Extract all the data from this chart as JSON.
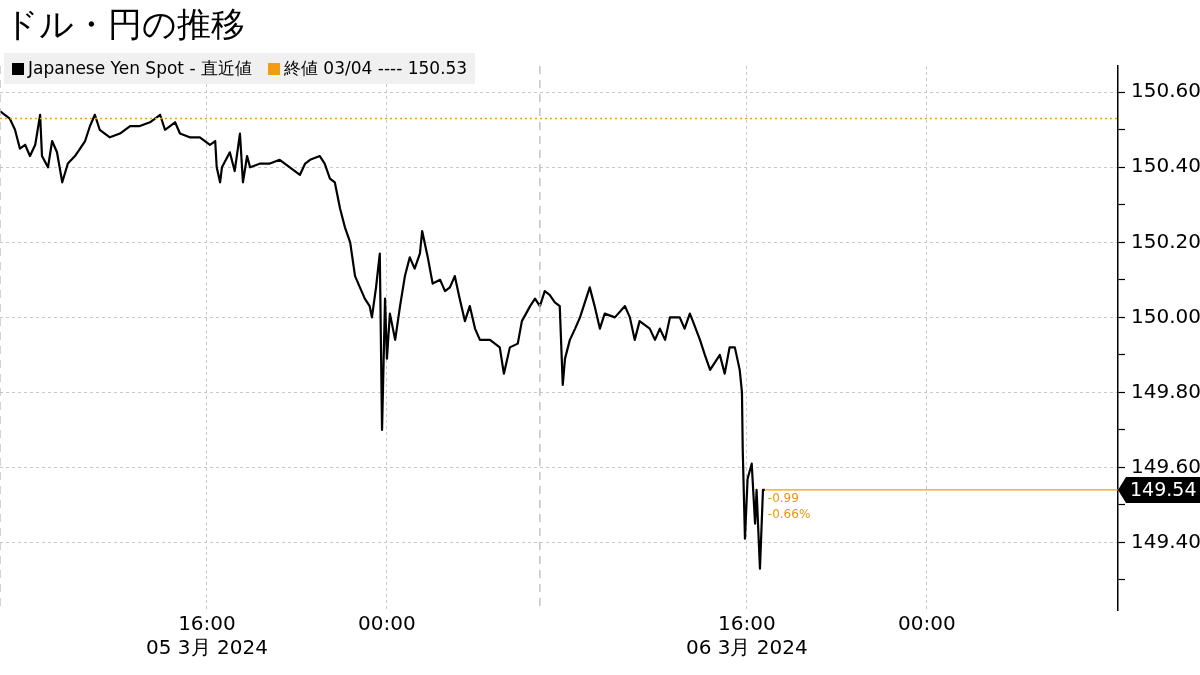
{
  "chart_data": {
    "type": "line",
    "title": "ドル・円の推移",
    "x": [
      "2024-03-05T06:48",
      "2024-03-05T07:14",
      "2024-03-05T07:28",
      "2024-03-05T07:41",
      "2024-03-05T07:55",
      "2024-03-05T08:08",
      "2024-03-05T08:22",
      "2024-03-05T08:35",
      "2024-03-05T08:40",
      "2024-03-05T08:56",
      "2024-03-05T09:07",
      "2024-03-05T09:20",
      "2024-03-05T09:34",
      "2024-03-05T09:49",
      "2024-03-05T10:08",
      "2024-03-05T10:35",
      "2024-03-05T10:48",
      "2024-03-05T11:01",
      "2024-03-05T11:14",
      "2024-03-05T11:41",
      "2024-03-05T12:08",
      "2024-03-05T12:35",
      "2024-03-05T13:01",
      "2024-03-05T13:28",
      "2024-03-05T13:55",
      "2024-03-05T14:08",
      "2024-03-05T14:35",
      "2024-03-05T14:48",
      "2024-03-05T15:14",
      "2024-03-05T15:41",
      "2024-03-05T16:08",
      "2024-03-05T16:22",
      "2024-03-05T16:26",
      "2024-03-05T16:35",
      "2024-03-05T16:40",
      "2024-03-05T17:01",
      "2024-03-05T17:14",
      "2024-03-05T17:28",
      "2024-03-05T17:36",
      "2024-03-05T17:47",
      "2024-03-05T17:55",
      "2024-03-05T18:22",
      "2024-03-05T18:48",
      "2024-03-05T19:14",
      "2024-03-05T19:41",
      "2024-03-05T20:08",
      "2024-03-05T20:22",
      "2024-03-05T20:35",
      "2024-03-05T21:01",
      "2024-03-05T21:14",
      "2024-03-05T21:28",
      "2024-03-05T21:41",
      "2024-03-05T21:55",
      "2024-03-05T22:08",
      "2024-03-05T22:22",
      "2024-03-05T22:35",
      "2024-03-05T22:48",
      "2024-03-05T23:01",
      "2024-03-05T23:14",
      "2024-03-05T23:20",
      "2024-03-05T23:31",
      "2024-03-05T23:41",
      "2024-03-05T23:47",
      "2024-03-05T23:55",
      "2024-03-06T00:00",
      "2024-03-06T00:08",
      "2024-03-06T00:22",
      "2024-03-06T00:35",
      "2024-03-06T00:48",
      "2024-03-06T01:01",
      "2024-03-06T01:14",
      "2024-03-06T01:28",
      "2024-03-06T01:34",
      "2024-03-06T01:49",
      "2024-03-06T02:02",
      "2024-03-06T02:22",
      "2024-03-06T02:35",
      "2024-03-06T02:48",
      "2024-03-06T03:01",
      "2024-03-06T03:14",
      "2024-03-06T03:28",
      "2024-03-06T03:41",
      "2024-03-06T03:55",
      "2024-03-06T04:08",
      "2024-03-06T04:35",
      "2024-03-06T05:01",
      "2024-03-06T05:12",
      "2024-03-06T05:28",
      "2024-03-06T05:49",
      "2024-03-06T06:00",
      "2024-03-06T06:22",
      "2024-03-06T06:35",
      "2024-03-06T06:48",
      "2024-03-06T07:01",
      "2024-03-06T07:14",
      "2024-03-06T07:28",
      "2024-03-06T07:41",
      "2024-03-06T07:49",
      "2024-03-06T07:55",
      "2024-03-06T08:08",
      "2024-03-06T08:22",
      "2024-03-06T08:35",
      "2024-03-06T08:48",
      "2024-03-06T09:01",
      "2024-03-06T09:14",
      "2024-03-06T09:28",
      "2024-03-06T09:41",
      "2024-03-06T10:08",
      "2024-03-06T10:35",
      "2024-03-06T10:48",
      "2024-03-06T11:01",
      "2024-03-06T11:14",
      "2024-03-06T11:41",
      "2024-03-06T11:55",
      "2024-03-06T12:08",
      "2024-03-06T12:22",
      "2024-03-06T12:35",
      "2024-03-06T13:01",
      "2024-03-06T13:14",
      "2024-03-06T13:28",
      "2024-03-06T13:36",
      "2024-03-06T13:55",
      "2024-03-06T14:08",
      "2024-03-06T14:22",
      "2024-03-06T14:35",
      "2024-03-06T14:48",
      "2024-03-06T15:01",
      "2024-03-06T15:14",
      "2024-03-06T15:28",
      "2024-03-06T15:41",
      "2024-03-06T15:47",
      "2024-03-06T15:49",
      "2024-03-06T15:55",
      "2024-03-06T16:02",
      "2024-03-06T16:13",
      "2024-03-06T16:22",
      "2024-03-06T16:26",
      "2024-03-06T16:35",
      "2024-03-06T16:43",
      "2024-03-06T16:48"
    ],
    "series": [
      {
        "name": "Japanese Yen Spot - 直近値",
        "color": "#000000",
        "values": [
          150.55,
          150.53,
          150.5,
          150.45,
          150.46,
          150.43,
          150.46,
          150.54,
          150.43,
          150.4,
          150.47,
          150.44,
          150.36,
          150.41,
          150.43,
          150.47,
          150.51,
          150.54,
          150.5,
          150.48,
          150.49,
          150.51,
          150.51,
          150.52,
          150.54,
          150.5,
          150.52,
          150.49,
          150.48,
          150.48,
          150.46,
          150.47,
          150.4,
          150.36,
          150.4,
          150.44,
          150.39,
          150.49,
          150.36,
          150.43,
          150.4,
          150.41,
          150.41,
          150.42,
          150.4,
          150.38,
          150.41,
          150.42,
          150.43,
          150.41,
          150.37,
          150.36,
          150.29,
          150.24,
          150.2,
          150.11,
          150.08,
          150.05,
          150.03,
          150.0,
          150.08,
          150.17,
          149.7,
          150.05,
          149.89,
          150.01,
          149.94,
          150.03,
          150.11,
          150.16,
          150.13,
          150.17,
          150.23,
          150.16,
          150.09,
          150.1,
          150.07,
          150.08,
          150.11,
          150.05,
          149.99,
          150.03,
          149.97,
          149.94,
          149.94,
          149.92,
          149.85,
          149.92,
          149.93,
          149.99,
          150.03,
          150.05,
          150.03,
          150.07,
          150.06,
          150.04,
          150.03,
          149.82,
          149.89,
          149.94,
          149.97,
          150.0,
          150.04,
          150.08,
          150.03,
          149.97,
          150.01,
          150.0,
          150.03,
          150.0,
          149.94,
          149.99,
          149.97,
          149.94,
          149.97,
          149.94,
          150.0,
          150.0,
          149.97,
          150.01,
          149.99,
          149.94,
          149.9,
          149.86,
          149.88,
          149.9,
          149.85,
          149.92,
          149.92,
          149.86,
          149.8,
          149.65,
          149.41,
          149.57,
          149.61,
          149.45,
          149.54,
          149.33,
          149.54,
          149.54
        ]
      }
    ],
    "xlim": [
      "2024-03-05T06:48",
      "2024-03-07T08:30"
    ],
    "xticks": [
      {
        "value": "2024-03-05T16:00",
        "label": "16:00\n05 3月 2024"
      },
      {
        "value": "2024-03-06T00:00",
        "label": "00:00"
      },
      {
        "value": "2024-03-06T16:00",
        "label": "16:00\n06 3月 2024"
      },
      {
        "value": "2024-03-07T00:00",
        "label": "00:00"
      }
    ],
    "ylim": [
      149.22,
      150.67
    ],
    "yticks": [
      {
        "value": 149.3,
        "label": null
      },
      {
        "value": 149.4,
        "label": "149.40"
      },
      {
        "value": 149.5,
        "label": null
      },
      {
        "value": 149.6,
        "label": "149.60"
      },
      {
        "value": 149.7,
        "label": null
      },
      {
        "value": 149.8,
        "label": "149.80"
      },
      {
        "value": 149.9,
        "label": null
      },
      {
        "value": 150.0,
        "label": "150.00"
      },
      {
        "value": 150.1,
        "label": null
      },
      {
        "value": 150.2,
        "label": "150.20"
      },
      {
        "value": 150.3,
        "label": null
      },
      {
        "value": 150.4,
        "label": "150.40"
      },
      {
        "value": 150.5,
        "label": null
      },
      {
        "value": 150.6,
        "label": "150.60"
      }
    ],
    "ref_lines": [
      {
        "axis": "y",
        "value": 150.53,
        "label": "終値 03/04 ---- 150.53",
        "color": "#f39c12",
        "line_style": "dotted"
      },
      {
        "axis": "y",
        "value": 149.54,
        "label": "149.54",
        "color": "#f39c12",
        "line_style": "solid"
      },
      {
        "axis": "x",
        "value": "2024-03-05T06:48",
        "color": "#bbbbbb",
        "line_style": "dashed"
      },
      {
        "axis": "x",
        "value": "2024-03-06T06:48",
        "color": "#bbbbbb",
        "line_style": "dashed"
      }
    ],
    "annotations": [
      "-0.99",
      "-0.66%"
    ],
    "grid": true,
    "legend": "top left",
    "line_style": "solid",
    "marker": "none"
  }
}
